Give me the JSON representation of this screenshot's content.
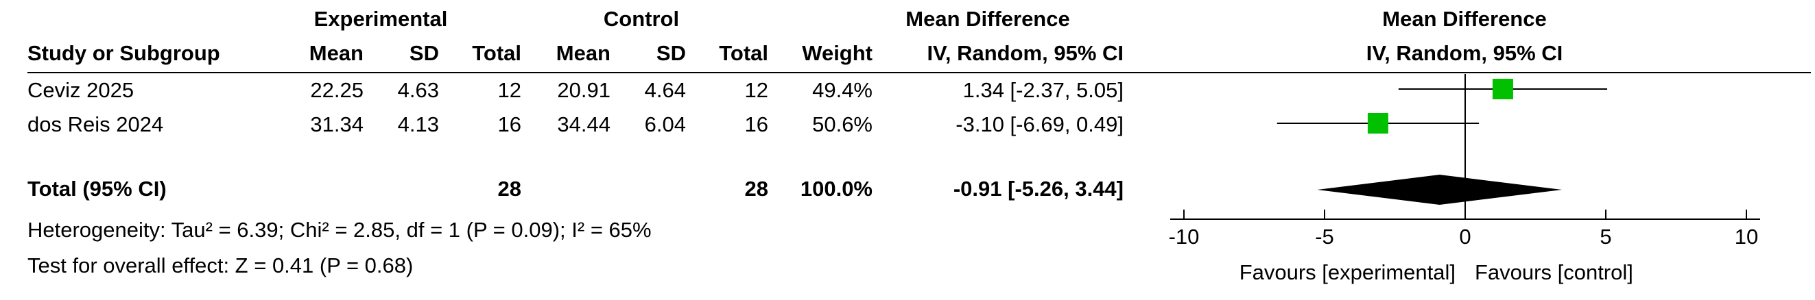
{
  "chart_data": {
    "type": "forest",
    "group_headers": {
      "experimental": "Experimental",
      "control": "Control",
      "effect": "Mean Difference",
      "plot": "Mean Difference"
    },
    "columns": {
      "study": "Study or Subgroup",
      "exp_mean": "Mean",
      "exp_sd": "SD",
      "exp_total": "Total",
      "ctl_mean": "Mean",
      "ctl_sd": "SD",
      "ctl_total": "Total",
      "weight": "Weight",
      "effect": "IV, Random, 95% CI",
      "plot": "IV, Random, 95% CI"
    },
    "studies": [
      {
        "name": "Ceviz 2025",
        "exp_mean": "22.25",
        "exp_sd": "4.63",
        "exp_total": "12",
        "ctl_mean": "20.91",
        "ctl_sd": "4.64",
        "ctl_total": "12",
        "weight": "49.4%",
        "ci_text": "1.34 [-2.37, 5.05]",
        "md": 1.34,
        "lower": -2.37,
        "upper": 5.05,
        "weight_pct": 49.4
      },
      {
        "name": "dos Reis 2024",
        "exp_mean": "31.34",
        "exp_sd": "4.13",
        "exp_total": "16",
        "ctl_mean": "34.44",
        "ctl_sd": "6.04",
        "ctl_total": "16",
        "weight": "50.6%",
        "ci_text": "-3.10 [-6.69, 0.49]",
        "md": -3.1,
        "lower": -6.69,
        "upper": 0.49,
        "weight_pct": 50.6
      }
    ],
    "total": {
      "name": "Total (95% CI)",
      "exp_total": "28",
      "ctl_total": "28",
      "weight": "100.0%",
      "ci_text": "-0.91 [-5.26, 3.44]",
      "md": -0.91,
      "lower": -5.26,
      "upper": 3.44
    },
    "heterogeneity": "Heterogeneity: Tau² = 6.39; Chi² = 2.85, df = 1 (P = 0.09); I² = 65%",
    "overall_effect": "Test for overall effect: Z = 0.41 (P = 0.68)",
    "axis": {
      "min": -10,
      "max": 10,
      "ticks": [
        -10,
        -5,
        0,
        5,
        10
      ],
      "tick_labels": [
        "-10",
        "-5",
        "0",
        "5",
        "10"
      ]
    },
    "favours_left": "Favours [experimental]",
    "favours_right": "Favours [control]",
    "colors": {
      "study_marker": "#00c000",
      "diamond": "#000000",
      "lines": "#000000"
    }
  }
}
